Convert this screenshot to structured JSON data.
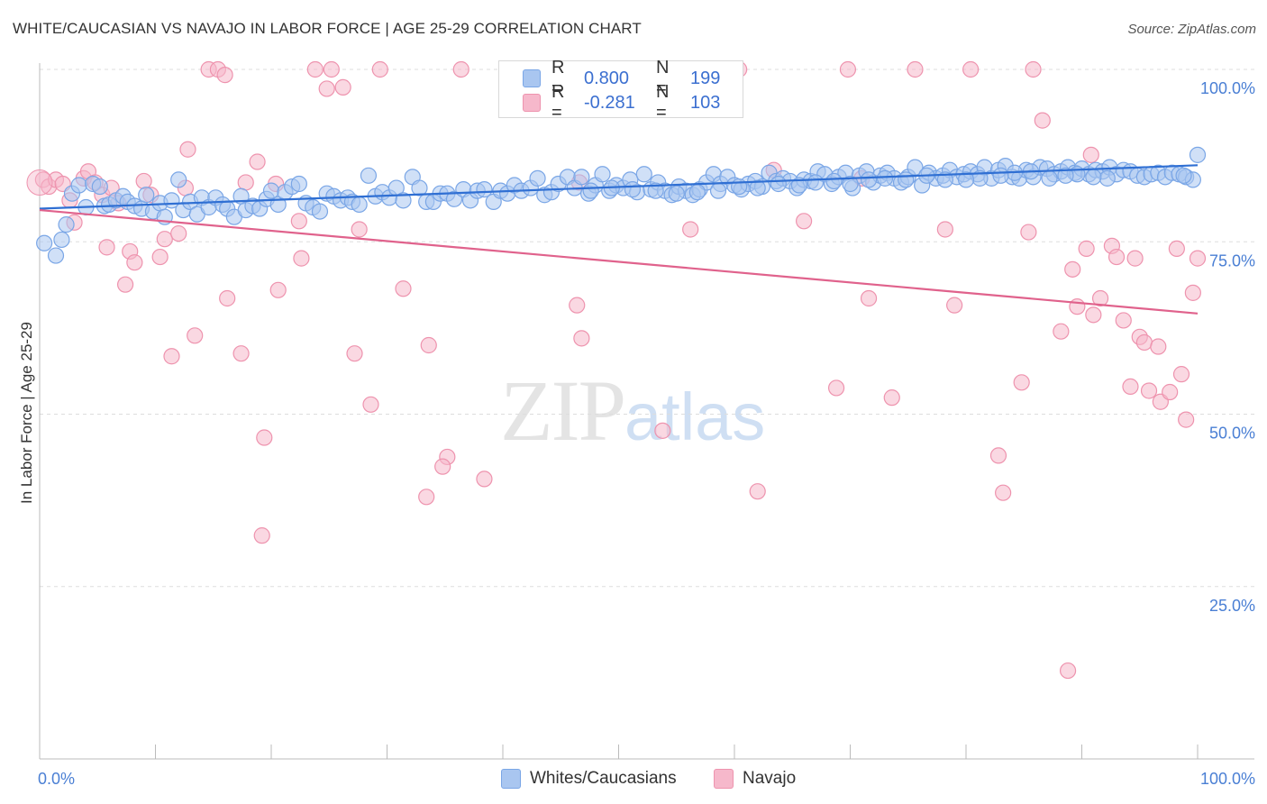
{
  "header": {
    "title": "WHITE/CAUCASIAN VS NAVAJO IN LABOR FORCE | AGE 25-29 CORRELATION CHART",
    "source": "Source: ZipAtlas.com"
  },
  "watermark": {
    "zip": "ZIP",
    "atlas": "atlas"
  },
  "legend": {
    "rows": [
      {
        "r_label": "R =",
        "r_value": "0.800",
        "n_label": "N =",
        "n_value": "199",
        "color": "#a9c6f0"
      },
      {
        "r_label": "R =",
        "r_value": "-0.281",
        "n_label": "N =",
        "n_value": "103",
        "color": "#f6b8cb"
      }
    ]
  },
  "bottom_legend": {
    "items": [
      {
        "label": "Whites/Caucasians",
        "color": "#a9c6f0"
      },
      {
        "label": "Navajo",
        "color": "#f6b8cb"
      }
    ]
  },
  "colors": {
    "blue_point_fill": "#a9c6f0",
    "blue_point_stroke": "#7aa6e6",
    "blue_line": "#2f6fd3",
    "pink_point_fill": "#f6b8cb",
    "pink_point_stroke": "#ee93ae",
    "pink_line": "#e0628c",
    "tick_label": "#4a7fd4",
    "grid": "#dddddd"
  },
  "chart_data": {
    "type": "scatter",
    "title": "WHITE/CAUCASIAN VS NAVAJO IN LABOR FORCE | AGE 25-29 CORRELATION CHART",
    "xlabel": "",
    "ylabel": "In Labor Force | Age 25-29",
    "xlim": [
      0,
      100
    ],
    "ylim": [
      0,
      103
    ],
    "x_tick_labels": [
      "0.0%",
      "100.0%"
    ],
    "y_ticks": [
      25,
      50,
      75,
      100
    ],
    "y_tick_labels": [
      "25.0%",
      "50.0%",
      "75.0%",
      "100.0%"
    ],
    "grid": "horizontal dashed",
    "legend_position": "top-center",
    "series": [
      {
        "name": "Whites/Caucasians",
        "R": 0.8,
        "N": 199,
        "trend": {
          "x": [
            0,
            100
          ],
          "y": [
            79.8,
            86.1
          ]
        },
        "points": [
          [
            0.4,
            74.8
          ],
          [
            1.4,
            73
          ],
          [
            1.9,
            75.3
          ],
          [
            2.3,
            77.5
          ],
          [
            2.8,
            82
          ],
          [
            3.4,
            83.2
          ],
          [
            4,
            80
          ],
          [
            4.6,
            83.4
          ],
          [
            5.2,
            83
          ],
          [
            5.6,
            80.2
          ],
          [
            6,
            80.4
          ],
          [
            6.6,
            81
          ],
          [
            7.2,
            81.6
          ],
          [
            7.6,
            80.8
          ],
          [
            8.2,
            80.2
          ],
          [
            8.8,
            79.8
          ],
          [
            9.2,
            81.8
          ],
          [
            9.8,
            79.4
          ],
          [
            10.4,
            80.6
          ],
          [
            10.8,
            78.6
          ],
          [
            11.4,
            81
          ],
          [
            12,
            84
          ],
          [
            12.4,
            79.6
          ],
          [
            13,
            80.8
          ],
          [
            13.6,
            79
          ],
          [
            14,
            81.4
          ],
          [
            14.6,
            80
          ],
          [
            15.2,
            81.4
          ],
          [
            15.8,
            80.4
          ],
          [
            16.2,
            79.8
          ],
          [
            16.8,
            78.6
          ],
          [
            17.4,
            81.6
          ],
          [
            17.8,
            79.6
          ],
          [
            18.4,
            80.2
          ],
          [
            19,
            79.8
          ],
          [
            19.6,
            81.2
          ],
          [
            20,
            82.4
          ],
          [
            20.6,
            80.4
          ],
          [
            21.2,
            82.2
          ],
          [
            21.8,
            83
          ],
          [
            22.4,
            83.4
          ],
          [
            23,
            80.6
          ],
          [
            23.6,
            80
          ],
          [
            24.2,
            79.4
          ],
          [
            24.8,
            82
          ],
          [
            25.4,
            81.6
          ],
          [
            26,
            81
          ],
          [
            26.6,
            81.4
          ],
          [
            27,
            80.8
          ],
          [
            27.6,
            80.4
          ],
          [
            28.4,
            84.6
          ],
          [
            29,
            81.6
          ],
          [
            29.6,
            82.2
          ],
          [
            30.2,
            81.4
          ],
          [
            30.8,
            82.8
          ],
          [
            31.4,
            81
          ],
          [
            32.2,
            84.4
          ],
          [
            32.8,
            82.8
          ],
          [
            33.4,
            80.8
          ],
          [
            34,
            80.8
          ],
          [
            34.6,
            82
          ],
          [
            35.2,
            82
          ],
          [
            35.8,
            81.2
          ],
          [
            36.6,
            82.6
          ],
          [
            37.2,
            81
          ],
          [
            37.8,
            82.4
          ],
          [
            38.4,
            82.6
          ],
          [
            39.2,
            80.8
          ],
          [
            39.8,
            82.4
          ],
          [
            40.4,
            82
          ],
          [
            41,
            83.2
          ],
          [
            41.6,
            82.4
          ],
          [
            42.4,
            82.8
          ],
          [
            43,
            84.2
          ],
          [
            43.6,
            81.8
          ],
          [
            44.2,
            82.2
          ],
          [
            44.8,
            83.4
          ],
          [
            45.6,
            84.4
          ],
          [
            46.2,
            82.8
          ],
          [
            46.8,
            84.4
          ],
          [
            47.4,
            82
          ],
          [
            48,
            83.2
          ],
          [
            48.6,
            84.8
          ],
          [
            49.2,
            82.4
          ],
          [
            49.8,
            83.2
          ],
          [
            50.4,
            82.8
          ],
          [
            51,
            84
          ],
          [
            51.6,
            82.2
          ],
          [
            52.2,
            84.8
          ],
          [
            52.8,
            82.6
          ],
          [
            53.4,
            83.6
          ],
          [
            54,
            82.4
          ],
          [
            54.6,
            81.8
          ],
          [
            55.2,
            83
          ],
          [
            55.8,
            82.4
          ],
          [
            56.4,
            81.8
          ],
          [
            57,
            82.6
          ],
          [
            57.6,
            83.6
          ],
          [
            58.2,
            84.8
          ],
          [
            58.8,
            83.4
          ],
          [
            59.4,
            84.4
          ],
          [
            60,
            83.2
          ],
          [
            60.6,
            82.6
          ],
          [
            61.2,
            83.4
          ],
          [
            61.8,
            83.8
          ],
          [
            62.4,
            83
          ],
          [
            63,
            85
          ],
          [
            63.6,
            83.8
          ],
          [
            64.2,
            84.2
          ],
          [
            64.8,
            83.8
          ],
          [
            65.4,
            82.8
          ],
          [
            66,
            84
          ],
          [
            66.6,
            83.8
          ],
          [
            67.2,
            85.2
          ],
          [
            67.8,
            84.8
          ],
          [
            68.4,
            83.4
          ],
          [
            69,
            84.4
          ],
          [
            69.6,
            85
          ],
          [
            70.2,
            82.8
          ],
          [
            70.8,
            84.6
          ],
          [
            71.4,
            85.2
          ],
          [
            72,
            83.6
          ],
          [
            72.6,
            84.6
          ],
          [
            73.2,
            85
          ],
          [
            73.8,
            84.2
          ],
          [
            74.4,
            83.6
          ],
          [
            75,
            84.4
          ],
          [
            75.6,
            85.8
          ],
          [
            76.2,
            83.2
          ],
          [
            76.8,
            85
          ],
          [
            77.4,
            84.2
          ],
          [
            78,
            84.6
          ],
          [
            78.6,
            85.4
          ],
          [
            79.2,
            84.4
          ],
          [
            79.8,
            84.8
          ],
          [
            80.4,
            85.2
          ],
          [
            81,
            84.8
          ],
          [
            81.6,
            85.8
          ],
          [
            82.2,
            84.2
          ],
          [
            82.8,
            85.4
          ],
          [
            83.4,
            86
          ],
          [
            84,
            84.4
          ],
          [
            84.6,
            84.2
          ],
          [
            85.2,
            85.4
          ],
          [
            85.8,
            84.4
          ],
          [
            86.4,
            85.8
          ],
          [
            87,
            85.6
          ],
          [
            87.6,
            84.8
          ],
          [
            88.2,
            85.2
          ],
          [
            88.8,
            85.8
          ],
          [
            89.4,
            85
          ],
          [
            90,
            85.6
          ],
          [
            90.6,
            84.8
          ],
          [
            91.2,
            85.4
          ],
          [
            91.8,
            85.2
          ],
          [
            92.4,
            85.8
          ],
          [
            93,
            84.8
          ],
          [
            93.6,
            85.4
          ],
          [
            94.2,
            85.2
          ],
          [
            94.8,
            84.6
          ],
          [
            95.4,
            84.4
          ],
          [
            96,
            84.8
          ],
          [
            96.6,
            85
          ],
          [
            97.2,
            84.4
          ],
          [
            97.8,
            85
          ],
          [
            98.4,
            84.8
          ],
          [
            99,
            84.4
          ],
          [
            99.6,
            84
          ],
          [
            100,
            87.6
          ],
          [
            98.8,
            84.6
          ],
          [
            92.2,
            84.2
          ],
          [
            91,
            84.4
          ],
          [
            89.6,
            84.8
          ],
          [
            88.6,
            84.6
          ],
          [
            87.2,
            84.2
          ],
          [
            85.6,
            85.2
          ],
          [
            84.2,
            85
          ],
          [
            83,
            84.6
          ],
          [
            81.2,
            84.2
          ],
          [
            80,
            84
          ],
          [
            78.2,
            84
          ],
          [
            76.6,
            84.6
          ],
          [
            74.8,
            84
          ],
          [
            73,
            84.2
          ],
          [
            71.6,
            84
          ],
          [
            70,
            83.4
          ],
          [
            68.6,
            83.8
          ],
          [
            67,
            83.6
          ],
          [
            65.6,
            83.2
          ],
          [
            63.8,
            83.4
          ],
          [
            62,
            82.8
          ],
          [
            60.4,
            83
          ],
          [
            58.6,
            82.4
          ],
          [
            56.8,
            82.2
          ],
          [
            55,
            82
          ],
          [
            53.2,
            82.4
          ],
          [
            51.2,
            82.6
          ],
          [
            49.4,
            82.8
          ],
          [
            47.6,
            82.4
          ]
        ]
      },
      {
        "name": "Navajo",
        "R": -0.281,
        "N": 103,
        "trend": {
          "x": [
            0,
            100
          ],
          "y": [
            79.6,
            64.6
          ]
        },
        "points": [
          [
            0.3,
            84
          ],
          [
            0.8,
            83
          ],
          [
            1.4,
            84
          ],
          [
            2,
            83.4
          ],
          [
            2.6,
            81
          ],
          [
            3,
            77.8
          ],
          [
            3.8,
            84.2
          ],
          [
            4.2,
            85.2
          ],
          [
            4.8,
            83.6
          ],
          [
            5.4,
            81.8
          ],
          [
            5.8,
            74.2
          ],
          [
            6.2,
            82.8
          ],
          [
            6.8,
            80.6
          ],
          [
            7.4,
            68.8
          ],
          [
            7.8,
            73.6
          ],
          [
            8.2,
            72
          ],
          [
            9,
            83.8
          ],
          [
            9.6,
            81.8
          ],
          [
            10.4,
            72.8
          ],
          [
            10.8,
            75.4
          ],
          [
            11.4,
            58.4
          ],
          [
            12,
            76.2
          ],
          [
            12.6,
            82.8
          ],
          [
            12.8,
            88.4
          ],
          [
            13.4,
            61.4
          ],
          [
            14.6,
            100
          ],
          [
            15.4,
            100
          ],
          [
            16,
            99.2
          ],
          [
            16.2,
            66.8
          ],
          [
            17.4,
            58.8
          ],
          [
            17.8,
            83.6
          ],
          [
            18.8,
            86.6
          ],
          [
            19.2,
            32.4
          ],
          [
            19.4,
            46.6
          ],
          [
            20.6,
            68
          ],
          [
            20.4,
            83.4
          ],
          [
            22.4,
            78
          ],
          [
            22.6,
            72.6
          ],
          [
            23.8,
            100
          ],
          [
            24.8,
            97.2
          ],
          [
            25.2,
            100
          ],
          [
            26.2,
            97.4
          ],
          [
            27.2,
            58.8
          ],
          [
            27.6,
            76.8
          ],
          [
            28.6,
            51.4
          ],
          [
            29.4,
            100
          ],
          [
            31.4,
            68.2
          ],
          [
            33.4,
            38
          ],
          [
            33.6,
            60
          ],
          [
            35.2,
            43.8
          ],
          [
            34.8,
            42.4
          ],
          [
            36.4,
            100
          ],
          [
            38.4,
            40.6
          ],
          [
            40.6,
            100
          ],
          [
            46.6,
            83.6
          ],
          [
            46.4,
            65.8
          ],
          [
            46.8,
            61
          ],
          [
            53.8,
            47.6
          ],
          [
            55.6,
            100
          ],
          [
            56.2,
            76.8
          ],
          [
            60.4,
            100
          ],
          [
            62,
            38.8
          ],
          [
            63.4,
            85.4
          ],
          [
            66,
            78
          ],
          [
            68.8,
            53.8
          ],
          [
            69.8,
            100
          ],
          [
            71,
            84.2
          ],
          [
            71.6,
            66.8
          ],
          [
            73.6,
            52.4
          ],
          [
            75.6,
            100
          ],
          [
            78.2,
            76.8
          ],
          [
            79,
            65.8
          ],
          [
            80.4,
            100
          ],
          [
            82.8,
            44
          ],
          [
            83.2,
            38.6
          ],
          [
            84.8,
            54.6
          ],
          [
            85.4,
            76.4
          ],
          [
            85.8,
            100
          ],
          [
            86.6,
            92.6
          ],
          [
            88.2,
            62
          ],
          [
            88.8,
            12.8
          ],
          [
            89.2,
            71
          ],
          [
            89.6,
            65.6
          ],
          [
            90.4,
            74
          ],
          [
            91,
            64.4
          ],
          [
            91.6,
            66.8
          ],
          [
            92.6,
            74.4
          ],
          [
            93,
            72.8
          ],
          [
            93.6,
            63.6
          ],
          [
            94.2,
            54
          ],
          [
            94.6,
            72.6
          ],
          [
            95,
            61.2
          ],
          [
            95.4,
            60.4
          ],
          [
            95.8,
            53.4
          ],
          [
            96.6,
            59.8
          ],
          [
            96.8,
            51.8
          ],
          [
            97.6,
            53.2
          ],
          [
            98.2,
            74
          ],
          [
            98.6,
            55.8
          ],
          [
            99,
            49.2
          ],
          [
            99.6,
            67.6
          ],
          [
            100,
            72.6
          ],
          [
            90.8,
            87.6
          ]
        ]
      }
    ]
  }
}
